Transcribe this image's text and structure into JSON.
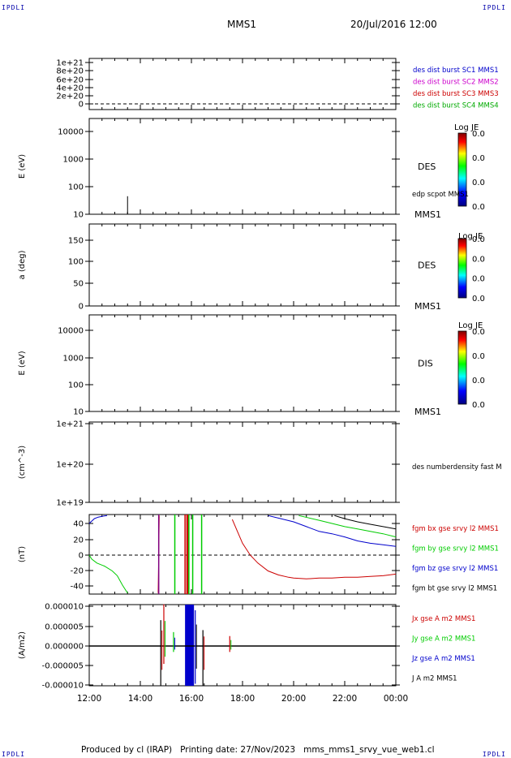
{
  "header": {
    "corner_tl": "IPDLI",
    "corner_tr": "IPDLI",
    "corner_bl": "IPDLI",
    "corner_br": "IPDLI",
    "spacecraft": "MMS1",
    "datetime": "20/Jul/2016 12:00"
  },
  "footer": {
    "text": "Produced by cl (IRAP)   Printing date: 27/Nov/2023   mms_mms1_srvy_vue_web1.cl"
  },
  "colors": {
    "mms1": "#0000cc",
    "mms2": "#cc00cc",
    "mms3": "#cc0000",
    "mms4": "#00aa00",
    "x": "#cc0000",
    "y": "#00cc00",
    "z": "#0000cc",
    "total": "#000000"
  },
  "chart_data": [
    {
      "type": "line",
      "ylabel": "",
      "yticks": [
        "1e+21",
        "8e+20",
        "6e+20",
        "4e+20",
        "2e+20",
        "0"
      ],
      "ylim": [
        0,
        1.1e+21
      ],
      "legend": [
        "des dist burst SC1 MMS1",
        "des dist burst SC2 MMS2",
        "des dist burst SC3 MMS3",
        "des dist burst SC4 MMS4"
      ],
      "series": [
        {
          "name": "des dist burst SC1 MMS1",
          "values": [
            0,
            0
          ]
        }
      ]
    },
    {
      "type": "heatmap",
      "ylabel": "E (eV)",
      "scale": "log",
      "yticks": [
        "10000",
        "1000",
        "100",
        "10"
      ],
      "ylim": [
        10,
        20000
      ],
      "label": "DES",
      "spacecraft": "MMS1",
      "overlay_legend": "edp scpot MMS1",
      "colorbar": {
        "title": "Log JE",
        "ticks": [
          "0.0",
          "0.0",
          "0.0",
          "0.0"
        ]
      },
      "overlay": {
        "x_hour": 13.5,
        "y_range": [
          10,
          45
        ]
      }
    },
    {
      "type": "heatmap",
      "ylabel": "a (deg)",
      "yticks": [
        "150",
        "100",
        "50",
        "0"
      ],
      "ylim": [
        0,
        180
      ],
      "label": "DES",
      "spacecraft": "MMS1",
      "colorbar": {
        "title": "Log JE",
        "ticks": [
          "0.0",
          "0.0",
          "0.0",
          "0.0"
        ]
      }
    },
    {
      "type": "heatmap",
      "ylabel": "E (eV)",
      "scale": "log",
      "yticks": [
        "10000",
        "1000",
        "100",
        "10"
      ],
      "ylim": [
        10,
        20000
      ],
      "label": "DIS",
      "spacecraft": "MMS1",
      "colorbar": {
        "title": "Log JE",
        "ticks": [
          "0.0",
          "0.0",
          "0.0",
          "0.0"
        ]
      }
    },
    {
      "type": "line",
      "ylabel": "(cm^-3)",
      "scale": "log",
      "yticks": [
        "1e+21",
        "1e+20",
        "1e+19"
      ],
      "ylim": [
        1e+19,
        1e+21
      ],
      "legend": [
        "des numberdensity fast M"
      ]
    },
    {
      "type": "line",
      "ylabel": "(nT)",
      "yticks": [
        "40",
        "20",
        "0",
        "-20",
        "-40"
      ],
      "ylim": [
        -48,
        50
      ],
      "legend": [
        "fgm bx gse srvy l2 MMS1",
        "fgm by gse srvy l2 MMS1",
        "fgm bz gse srvy l2 MMS1",
        "fgm bt gse srvy l2 MMS1"
      ],
      "series": [
        {
          "name": "fgm bx gse srvy l2 MMS1",
          "x": [
            14.7,
            14.72,
            14.74
          ],
          "values": [
            -48,
            0,
            50
          ]
        },
        {
          "name": "fgm by gse srvy l2 MMS1",
          "x": [
            12.0,
            12.1,
            12.3,
            12.6,
            12.9,
            13.1,
            13.2,
            13.3,
            13.4,
            13.5
          ],
          "values": [
            0,
            -5,
            -10,
            -14,
            -20,
            -26,
            -32,
            -38,
            -43,
            -48
          ]
        },
        {
          "name": "fgm bz gse srvy l2 MMS1",
          "x": [
            12.0,
            12.1,
            12.2,
            12.35,
            12.5,
            12.7
          ],
          "values": [
            40,
            43,
            46,
            48,
            49,
            50
          ]
        },
        {
          "name": "fgm bx gse srvy l2 MMS1",
          "x": [
            17.6,
            17.8,
            18.0,
            18.3,
            18.6,
            19.0,
            19.4,
            19.8,
            20.0,
            20.5,
            21.0,
            21.5,
            22.0,
            22.5,
            23.0,
            23.5,
            24.0
          ],
          "values": [
            45,
            30,
            15,
            0,
            -10,
            -20,
            -25,
            -28,
            -29,
            -30,
            -29,
            -29,
            -28,
            -28,
            -27,
            -26,
            -24
          ]
        },
        {
          "name": "fgm bz gse srvy l2 MMS1",
          "x": [
            19.0,
            19.5,
            20.0,
            20.5,
            21.0,
            21.5,
            22.0,
            22.5,
            23.0,
            23.5,
            24.0
          ],
          "values": [
            50,
            46,
            42,
            36,
            30,
            27,
            23,
            18,
            15,
            13,
            11
          ]
        },
        {
          "name": "fgm by gse srvy l2 MMS1",
          "x": [
            20.2,
            20.6,
            21.0,
            21.5,
            22.0,
            22.5,
            23.0,
            23.5,
            24.0
          ],
          "values": [
            50,
            47,
            44,
            40,
            36,
            33,
            30,
            27,
            23
          ]
        },
        {
          "name": "fgm bt gse srvy l2 MMS1",
          "x": [
            21.6,
            22.0,
            22.5,
            23.0,
            23.5,
            24.0
          ],
          "values": [
            50,
            46,
            42,
            39,
            36,
            33
          ]
        }
      ],
      "vlines": [
        {
          "x": 14.72,
          "color": "purple"
        },
        {
          "x": 15.35,
          "color": "green"
        },
        {
          "x": 15.75,
          "color": "red"
        },
        {
          "x": 15.9,
          "color": "green"
        },
        {
          "x": 16.05,
          "color": "green"
        },
        {
          "x": 16.4,
          "color": "green"
        }
      ],
      "bands": [
        {
          "x": [
            15.8,
            15.92
          ],
          "color": "red"
        }
      ]
    },
    {
      "type": "line",
      "ylabel": "(A/m2)",
      "yticks": [
        "0.000010",
        "0.000005",
        "0.000000",
        "-0.000005",
        "-0.000010"
      ],
      "ylim": [
        -1e-05,
        1e-05
      ],
      "xticks": [
        "12:00",
        "14:00",
        "16:00",
        "18:00",
        "20:00",
        "22:00",
        "00:00"
      ],
      "legend": [
        "Jx gse A m2 MMS1",
        "Jy gse A m2 MMS1",
        "Jz gse A m2 MMS1",
        "J A m2 MMS1"
      ],
      "bands": [
        {
          "x": [
            15.75,
            16.1
          ],
          "color": "blue"
        }
      ],
      "spikes": [
        {
          "x": 14.8,
          "values": [
            6.5e-06,
            -1e-05
          ]
        },
        {
          "x": 14.92,
          "values": [
            1.05e-05,
            -4.5e-06
          ]
        },
        {
          "x": 15.3,
          "values": [
            3.5e-06,
            -1.5e-06
          ]
        },
        {
          "x": 16.15,
          "values": [
            9e-06,
            -9.5e-06
          ]
        },
        {
          "x": 16.45,
          "values": [
            4e-06,
            -1e-05
          ]
        },
        {
          "x": 17.5,
          "values": [
            2.5e-06,
            -1.5e-06
          ]
        }
      ]
    }
  ]
}
